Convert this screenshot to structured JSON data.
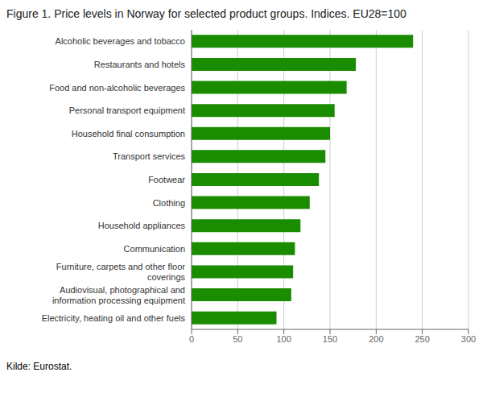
{
  "chart_data": {
    "type": "bar",
    "orientation": "horizontal",
    "title": "Figure 1. Price levels in Norway for selected product groups. Indices. EU28=100",
    "source": "Kilde: Eurostat.",
    "categories": [
      "Electricity, heating oil and other fuels",
      "Audiovisual, photographical and\ninformation processing equipment",
      "Furniture, carpets and other floor\ncoverings",
      "Communication",
      "Household appliances",
      "Clothing",
      "Footwear",
      "Transport services",
      "Household final consumption",
      "Personal transport equipment",
      "Food and non-alcoholic beverages",
      "Restaurants and hotels",
      "Alcoholic beverages and tobacco"
    ],
    "values": [
      92,
      108,
      110,
      112,
      118,
      128,
      138,
      145,
      150,
      155,
      168,
      178,
      240
    ],
    "color": "#1a8c00",
    "xlim": [
      0,
      300
    ],
    "xticks": [
      0,
      50,
      100,
      150,
      200,
      250,
      300
    ],
    "grid": true
  }
}
